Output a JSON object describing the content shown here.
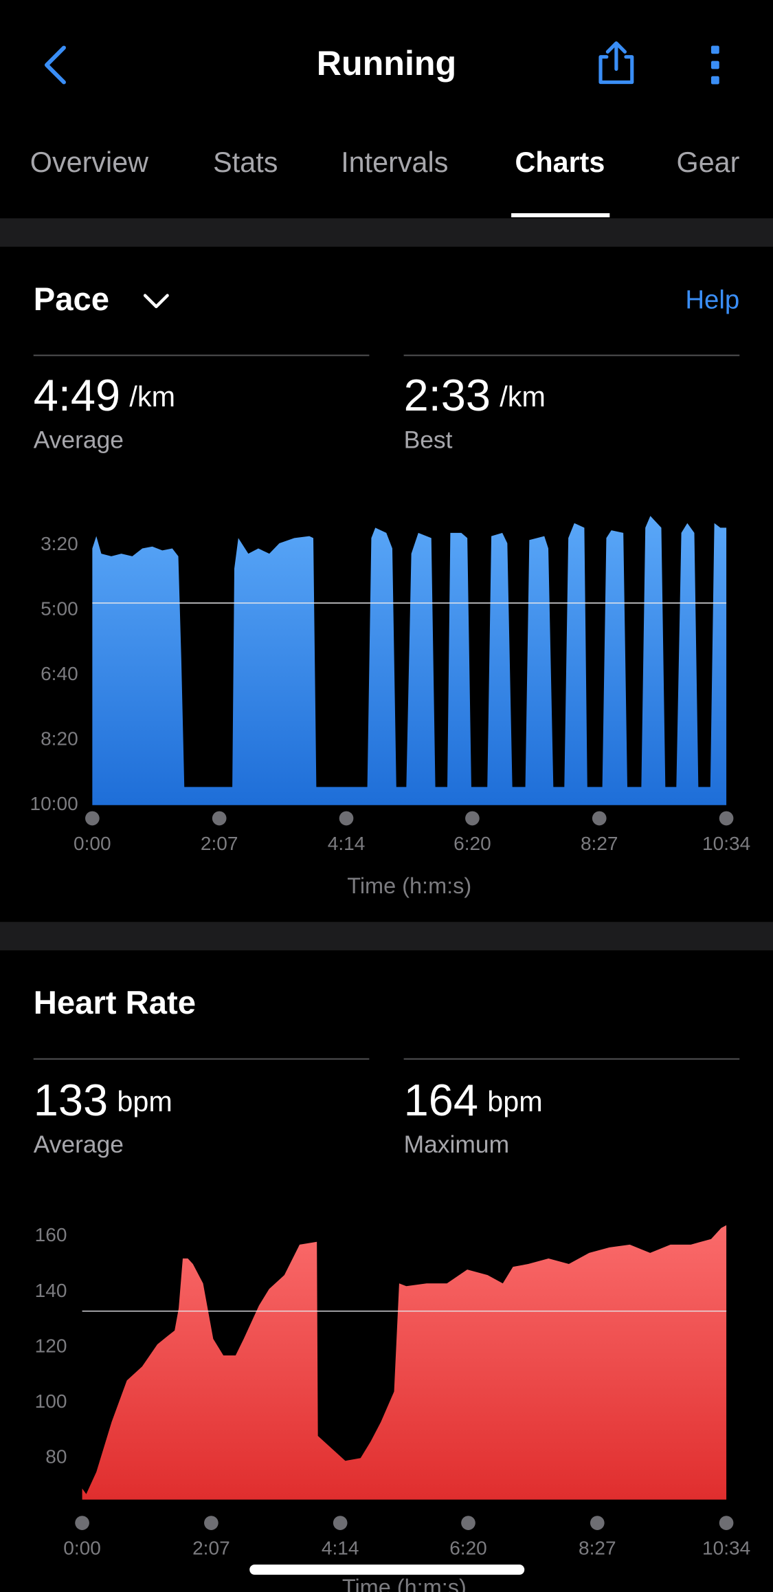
{
  "header": {
    "title": "Running"
  },
  "tabs": [
    "Overview",
    "Stats",
    "Intervals",
    "Charts",
    "Gear"
  ],
  "chart_data": [
    {
      "type": "area",
      "title": "Pace",
      "help": "Help",
      "stats": [
        {
          "value": "4:49",
          "unit": "/km",
          "label": "Average"
        },
        {
          "value": "2:33",
          "unit": "/km",
          "label": "Best"
        }
      ],
      "x_label": "Time (h:m:s)",
      "colors": [
        "#5aa7f8",
        "#1e6ed8"
      ],
      "average_line": 289,
      "xlim": [
        0,
        634
      ],
      "ylim": [
        600,
        150
      ],
      "xticks": [
        {
          "value": 0,
          "label": "0:00"
        },
        {
          "value": 127,
          "label": "2:07"
        },
        {
          "value": 254,
          "label": "4:14"
        },
        {
          "value": 380,
          "label": "6:20"
        },
        {
          "value": 507,
          "label": "8:27"
        },
        {
          "value": 634,
          "label": "10:34"
        }
      ],
      "yticks": [
        {
          "value": 200,
          "label": "3:20"
        },
        {
          "value": 300,
          "label": "5:00"
        },
        {
          "value": 400,
          "label": "6:40"
        },
        {
          "value": 500,
          "label": "8:20"
        },
        {
          "value": 600,
          "label": "10:00"
        }
      ],
      "x": [
        0,
        4,
        9,
        19,
        29,
        40,
        50,
        60,
        70,
        80,
        86,
        89,
        92,
        140,
        142,
        146,
        156,
        166,
        177,
        187,
        202,
        217,
        221,
        224,
        275,
        279,
        283,
        294,
        300,
        304,
        314,
        319,
        326,
        339,
        343,
        355,
        358,
        369,
        375,
        379,
        395,
        399,
        410,
        415,
        420,
        433,
        437,
        452,
        456,
        461,
        472,
        476,
        482,
        492,
        495,
        510,
        514,
        519,
        531,
        535,
        549,
        553,
        558,
        569,
        573,
        584,
        589,
        595,
        602,
        606,
        618,
        622,
        628,
        634
      ],
      "values": [
        205,
        186,
        213,
        217,
        213,
        217,
        205,
        202,
        208,
        205,
        217,
        377,
        572,
        572,
        236,
        189,
        213,
        205,
        213,
        197,
        189,
        186,
        189,
        572,
        572,
        189,
        173,
        181,
        205,
        572,
        572,
        213,
        181,
        189,
        572,
        572,
        181,
        181,
        189,
        572,
        572,
        186,
        181,
        197,
        572,
        572,
        192,
        186,
        205,
        572,
        572,
        189,
        166,
        173,
        572,
        572,
        189,
        177,
        181,
        572,
        572,
        173,
        155,
        173,
        572,
        572,
        181,
        166,
        181,
        572,
        572,
        166,
        173,
        173
      ]
    },
    {
      "type": "area",
      "title": "Heart Rate",
      "stats": [
        {
          "value": 133,
          "unit": "bpm",
          "label": "Average"
        },
        {
          "value": 164,
          "unit": "bpm",
          "label": "Maximum"
        }
      ],
      "x_label": "Time (h:m:s)",
      "colors": [
        "#fa6b6b",
        "#e02e2e"
      ],
      "average_line": 133,
      "xlim": [
        0,
        634
      ],
      "ylim": [
        65,
        165
      ],
      "xticks": [
        {
          "value": 0,
          "label": "0:00"
        },
        {
          "value": 127,
          "label": "2:07"
        },
        {
          "value": 254,
          "label": "4:14"
        },
        {
          "value": 380,
          "label": "6:20"
        },
        {
          "value": 507,
          "label": "8:27"
        },
        {
          "value": 634,
          "label": "10:34"
        }
      ],
      "yticks": [
        80,
        100,
        120,
        140,
        160
      ],
      "x": [
        0,
        4,
        14,
        29,
        44,
        59,
        74,
        84,
        91,
        95,
        99,
        104,
        109,
        119,
        129,
        139,
        151,
        159,
        174,
        184,
        199,
        214,
        231,
        232,
        244,
        259,
        274,
        284,
        294,
        307,
        312,
        319,
        339,
        359,
        379,
        399,
        414,
        424,
        439,
        459,
        479,
        499,
        519,
        539,
        559,
        579,
        599,
        619,
        629,
        634
      ],
      "values": [
        69,
        67,
        75,
        93,
        108,
        113,
        121,
        124,
        126,
        134,
        152,
        152,
        150,
        143,
        123,
        117,
        117,
        123,
        135,
        141,
        146,
        157,
        158,
        88,
        84,
        79,
        80,
        86,
        93,
        104,
        143,
        142,
        143,
        143,
        148,
        146,
        143,
        149,
        150,
        152,
        150,
        154,
        156,
        157,
        154,
        157,
        157,
        159,
        163,
        164
      ]
    }
  ]
}
